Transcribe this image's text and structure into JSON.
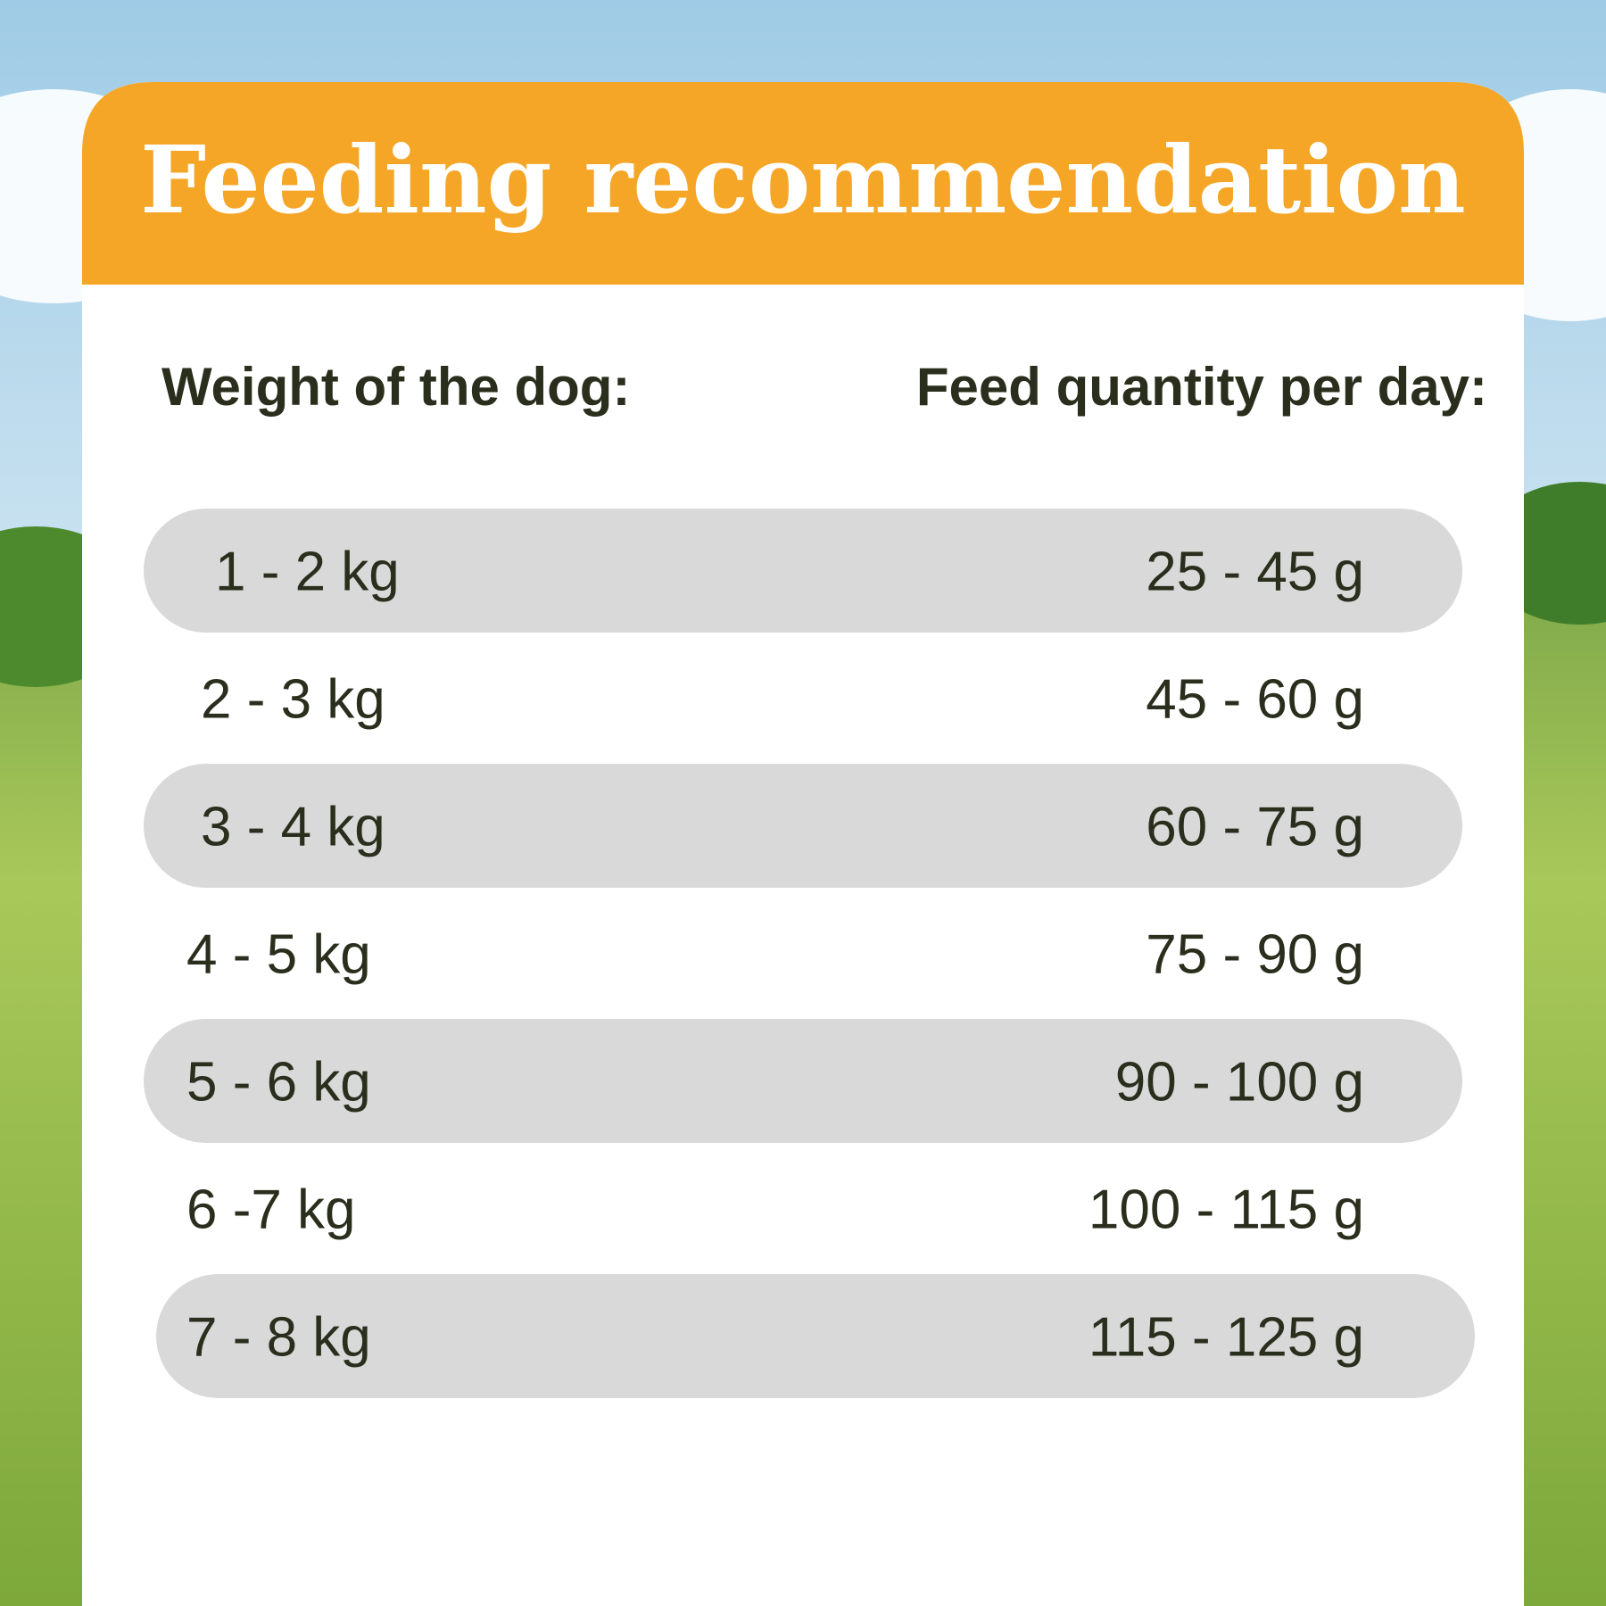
{
  "title": "Feeding recommendation",
  "headers": [
    "Weight of the dog:",
    "Feed quantity per day:"
  ],
  "rows": [
    [
      "1 - 2 kg",
      "25 - 45 g"
    ],
    [
      "2 - 3 kg",
      "45 - 60 g"
    ],
    [
      "3 - 4 kg",
      "60 - 75 g"
    ],
    [
      "4 - 5 kg",
      "75 - 90 g"
    ],
    [
      "5 - 6 kg",
      "90 - 100 g"
    ],
    [
      "6 -7 kg",
      "100 - 115 g"
    ],
    [
      "7 - 8 kg",
      "115 - 125 g"
    ]
  ]
}
